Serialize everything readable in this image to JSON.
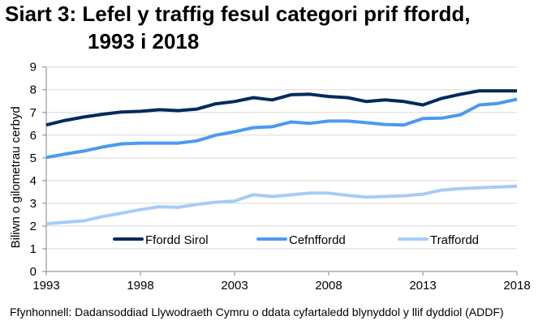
{
  "chart_data": {
    "type": "line",
    "title_line1": "Siart 3: Lefel y traffig fesul categori prif ffordd,",
    "title_line2": "1993 i 2018",
    "ylabel": "Biliwn o gilometrau cerbyd",
    "xlabel": "",
    "xlim": [
      1993,
      2018
    ],
    "ylim": [
      0,
      9
    ],
    "x_ticks": [
      1993,
      1998,
      2003,
      2008,
      2013,
      2018
    ],
    "y_ticks": [
      0,
      1,
      2,
      3,
      4,
      5,
      6,
      7,
      8,
      9
    ],
    "grid": true,
    "legend_position": "bottom-inside",
    "x": [
      1993,
      1994,
      1995,
      1996,
      1997,
      1998,
      1999,
      2000,
      2001,
      2002,
      2003,
      2004,
      2005,
      2006,
      2007,
      2008,
      2009,
      2010,
      2011,
      2012,
      2013,
      2014,
      2015,
      2016,
      2017,
      2018
    ],
    "series": [
      {
        "name": "Ffordd Sirol",
        "color": "#002A5C",
        "values": [
          6.45,
          6.65,
          6.8,
          6.92,
          7.02,
          7.05,
          7.12,
          7.08,
          7.15,
          7.38,
          7.48,
          7.65,
          7.55,
          7.78,
          7.8,
          7.7,
          7.65,
          7.48,
          7.55,
          7.48,
          7.33,
          7.62,
          7.8,
          7.95,
          7.95,
          7.95
        ]
      },
      {
        "name": "Cefnffordd",
        "color": "#4A9AF0",
        "values": [
          5.02,
          5.17,
          5.3,
          5.48,
          5.62,
          5.65,
          5.65,
          5.65,
          5.75,
          6.0,
          6.15,
          6.33,
          6.37,
          6.58,
          6.52,
          6.62,
          6.62,
          6.55,
          6.47,
          6.45,
          6.73,
          6.75,
          6.9,
          7.33,
          7.4,
          7.58
        ]
      },
      {
        "name": "Traffordd",
        "color": "#A6CCF7",
        "values": [
          2.1,
          2.17,
          2.23,
          2.42,
          2.57,
          2.72,
          2.85,
          2.82,
          2.95,
          3.05,
          3.1,
          3.38,
          3.3,
          3.37,
          3.45,
          3.45,
          3.35,
          3.27,
          3.3,
          3.33,
          3.4,
          3.58,
          3.65,
          3.68,
          3.72,
          3.75
        ]
      }
    ]
  },
  "source": "Ffynhonnell: Dadansoddiad Llywodraeth Cymru o ddata cyfartaledd blynyddol y llif dyddiol (ADDF)"
}
